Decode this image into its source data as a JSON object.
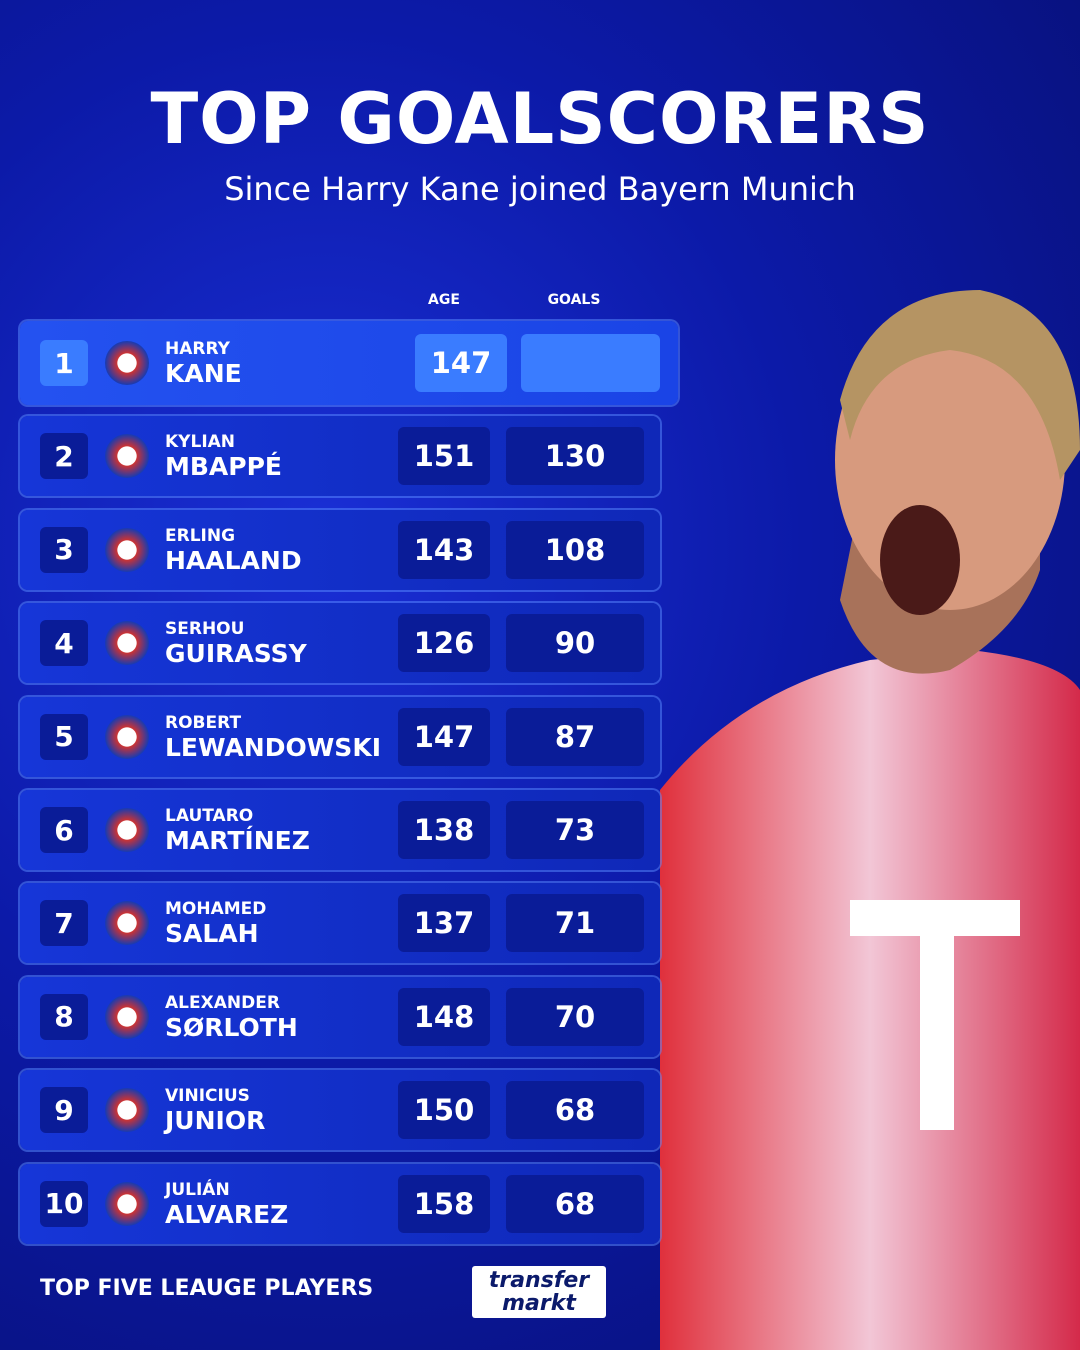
{
  "header": {
    "title": "TOP GOALSCORERS",
    "subtitle": "Since Harry Kane joined Bayern Munich"
  },
  "table": {
    "columns": [
      "AGE",
      "GOALS"
    ],
    "rows": [
      {
        "rank": "1",
        "first": "HARRY",
        "last": "KANE",
        "age": "147"
      },
      {
        "rank": "2",
        "first": "KYLIAN",
        "last": "MBAPPÉ",
        "age": "151",
        "goals": "130"
      },
      {
        "rank": "3",
        "first": "ERLING",
        "last": "HAALAND",
        "age": "143",
        "goals": "108"
      },
      {
        "rank": "4",
        "first": "SERHOU",
        "last": "GUIRASSY",
        "age": "126",
        "goals": "90"
      },
      {
        "rank": "5",
        "first": "ROBERT",
        "last": "LEWANDOWSKI",
        "age": "147",
        "goals": "87"
      },
      {
        "rank": "6",
        "first": "LAUTARO",
        "last": "MARTÍNEZ",
        "age": "138",
        "goals": "73"
      },
      {
        "rank": "7",
        "first": "MOHAMED",
        "last": "SALAH",
        "age": "137",
        "goals": "71"
      },
      {
        "rank": "8",
        "first": "ALEXANDER",
        "last": "SØRLOTH",
        "age": "148",
        "goals": "70"
      },
      {
        "rank": "9",
        "first": "VINICIUS",
        "last": "JUNIOR",
        "age": "150",
        "goals": "68"
      },
      {
        "rank": "10",
        "first": "JULIÁN",
        "last": "ALVAREZ",
        "age": "158",
        "goals": "68"
      }
    ]
  },
  "footer": {
    "note": "TOP FIVE LEAUGE PLAYERS",
    "logo": [
      "transfer",
      "markt"
    ]
  }
}
